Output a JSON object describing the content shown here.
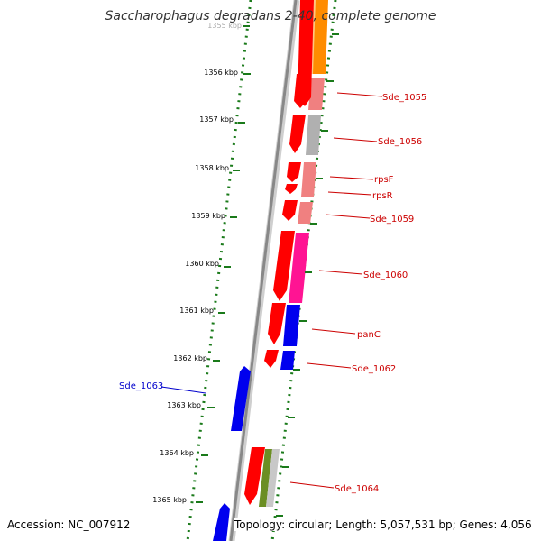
{
  "title": "Saccharophagus degradans 2-40, complete genome",
  "accession": "Accession: NC_007912",
  "stats": "Topology: circular; Length: 5,057,531 bp; Genes: 4,056",
  "kbp_labels": [
    "1355 kbp",
    "1356 kbp",
    "1357 kbp",
    "1358 kbp",
    "1359 kbp",
    "1360 kbp",
    "1361 kbp",
    "1362 kbp",
    "1363 kbp",
    "1364 kbp",
    "1365 kbp"
  ],
  "gene_labels": [
    {
      "text": "Sde_1055",
      "color": "#cc0000"
    },
    {
      "text": "Sde_1056",
      "color": "#cc0000"
    },
    {
      "text": "rpsF",
      "color": "#cc0000"
    },
    {
      "text": "rpsR",
      "color": "#cc0000"
    },
    {
      "text": "Sde_1059",
      "color": "#cc0000"
    },
    {
      "text": "Sde_1060",
      "color": "#cc0000"
    },
    {
      "text": "panC",
      "color": "#cc0000"
    },
    {
      "text": "Sde_1062",
      "color": "#cc0000"
    },
    {
      "text": "Sde_1063",
      "color": "#0000cc"
    },
    {
      "text": "Sde_1064",
      "color": "#cc0000"
    }
  ],
  "colors": {
    "forward_gene": "#ff0000",
    "reverse_gene": "#0000ee",
    "backbone": "#888888",
    "tick": "#1a7a1a",
    "cog_orange": "#ff8c00",
    "cog_pink": "#f08080",
    "cog_gray": "#b0b0b0",
    "cog_magenta": "#ff1493",
    "cog_blue": "#0000ee",
    "cog_olive": "#6b8e23"
  }
}
